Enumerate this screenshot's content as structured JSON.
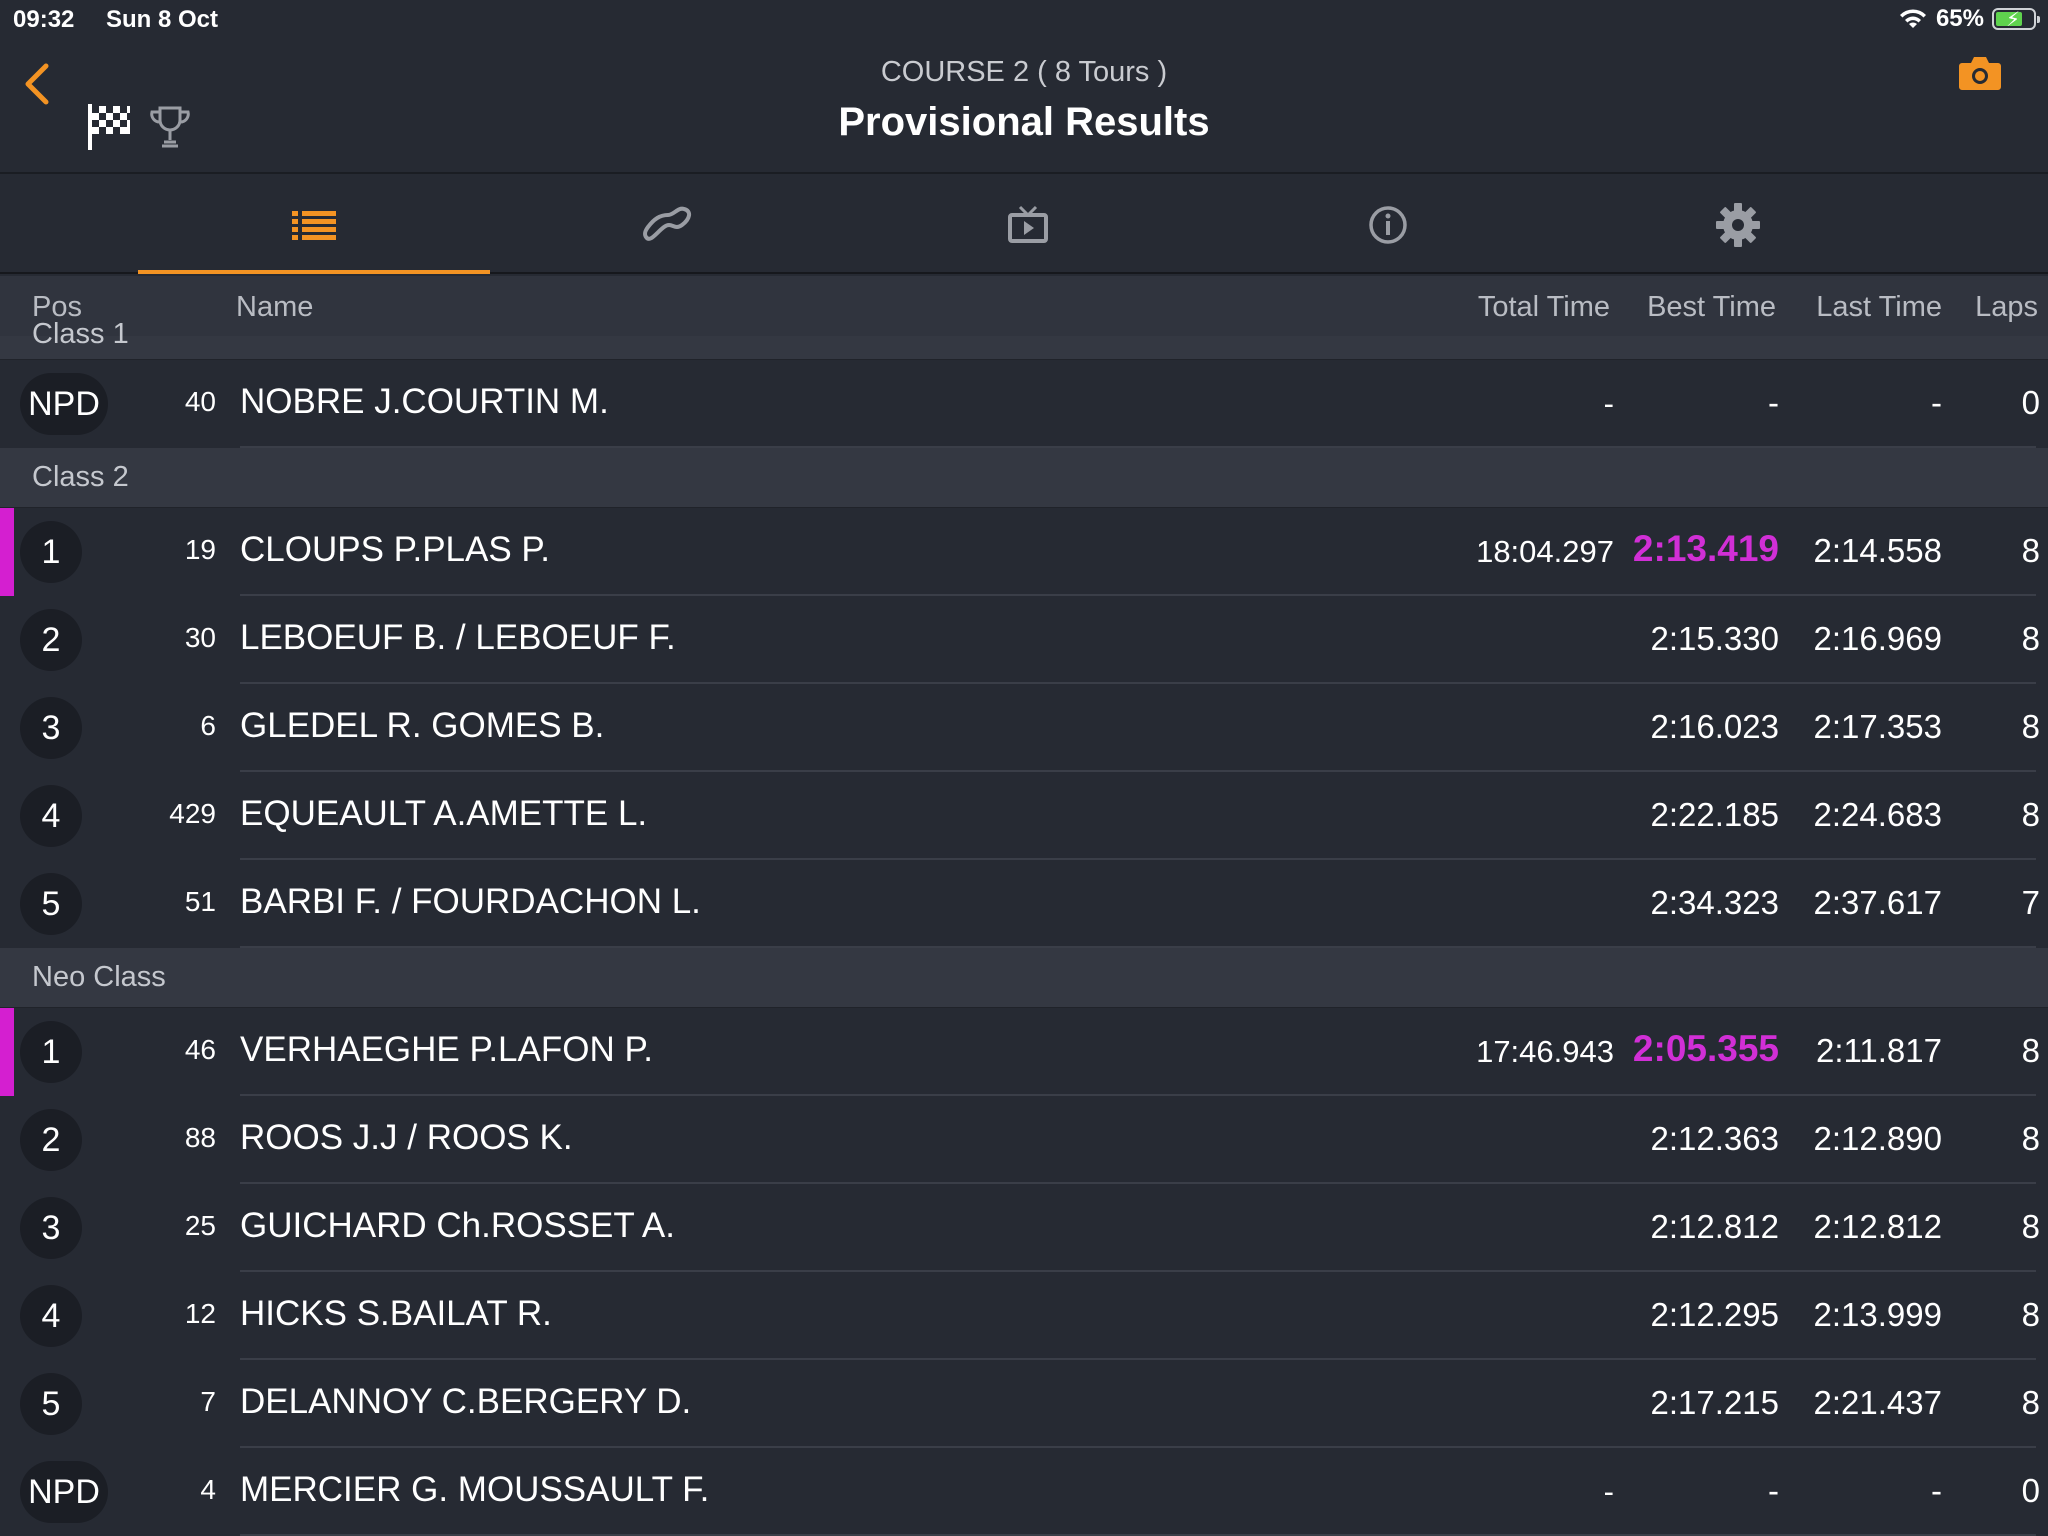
{
  "status_bar": {
    "time": "09:32",
    "date": "Sun 8 Oct",
    "battery": "65%"
  },
  "header": {
    "subtitle": "COURSE 2 ( 8 Tours )",
    "title": "Provisional Results"
  },
  "tabs": [
    {
      "icon": "list-icon",
      "active": true
    },
    {
      "icon": "track-icon",
      "active": false
    },
    {
      "icon": "tv-icon",
      "active": false
    },
    {
      "icon": "info-icon",
      "active": false
    },
    {
      "icon": "gear-icon",
      "active": false
    }
  ],
  "columns": {
    "pos": "Pos",
    "name": "Name",
    "total": "Total Time",
    "best": "Best Time",
    "last": "Last Time",
    "laps": "Laps"
  },
  "colors": {
    "accent": "#f39323",
    "best_highlight": "#d12fd6",
    "background": "#262a33"
  },
  "partial_section": "Class 1",
  "class1_rows": [
    {
      "pos": "NPD",
      "num": "40",
      "name": "NOBRE J.COURTIN M.",
      "total": "-",
      "best": "-",
      "last": "-",
      "laps": "0"
    }
  ],
  "class2_label": "Class 2",
  "class2_rows": [
    {
      "pos": "1",
      "num": "19",
      "name": "CLOUPS P.PLAS P.",
      "total": "18:04.297",
      "best": "2:13.419",
      "last": "2:14.558",
      "laps": "8",
      "best_overall": true
    },
    {
      "pos": "2",
      "num": "30",
      "name": "LEBOEUF B. / LEBOEUF F.",
      "total": "",
      "best": "2:15.330",
      "last": "2:16.969",
      "laps": "8"
    },
    {
      "pos": "3",
      "num": "6",
      "name": "GLEDEL R. GOMES B.",
      "total": "",
      "best": "2:16.023",
      "last": "2:17.353",
      "laps": "8"
    },
    {
      "pos": "4",
      "num": "429",
      "name": "EQUEAULT A.AMETTE L.",
      "total": "",
      "best": "2:22.185",
      "last": "2:24.683",
      "laps": "8"
    },
    {
      "pos": "5",
      "num": "51",
      "name": "BARBI F. / FOURDACHON L.",
      "total": "",
      "best": "2:34.323",
      "last": "2:37.617",
      "laps": "7"
    }
  ],
  "neo_label": "Neo Class",
  "neo_rows": [
    {
      "pos": "1",
      "num": "46",
      "name": "VERHAEGHE P.LAFON P.",
      "total": "17:46.943",
      "best": "2:05.355",
      "last": "2:11.817",
      "laps": "8",
      "best_overall": true
    },
    {
      "pos": "2",
      "num": "88",
      "name": "ROOS J.J / ROOS K.",
      "total": "",
      "best": "2:12.363",
      "last": "2:12.890",
      "laps": "8"
    },
    {
      "pos": "3",
      "num": "25",
      "name": "GUICHARD Ch.ROSSET A.",
      "total": "",
      "best": "2:12.812",
      "last": "2:12.812",
      "laps": "8"
    },
    {
      "pos": "4",
      "num": "12",
      "name": "HICKS S.BAILAT R.",
      "total": "",
      "best": "2:12.295",
      "last": "2:13.999",
      "laps": "8"
    },
    {
      "pos": "5",
      "num": "7",
      "name": "DELANNOY C.BERGERY D.",
      "total": "",
      "best": "2:17.215",
      "last": "2:21.437",
      "laps": "8"
    },
    {
      "pos": "NPD",
      "num": "4",
      "name": "MERCIER G. MOUSSAULT F.",
      "total": "-",
      "best": "-",
      "last": "-",
      "laps": "0"
    }
  ]
}
